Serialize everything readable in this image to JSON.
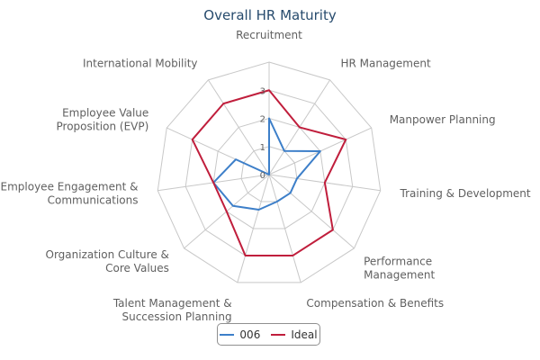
{
  "chart_data": {
    "type": "radar",
    "title": "Overall HR Maturity",
    "categories": [
      "Recruitment",
      "HR Management",
      "Manpower Planning",
      "Training & Development",
      "Performance Management",
      "Compensation & Benefits",
      "Talent Management & Succession Planning",
      "Organization Culture & Core Values",
      "Employee Engagement & Communications",
      "Employee Value Proposition (EVP)",
      "International Mobility"
    ],
    "category_lines": [
      [
        "Recruitment"
      ],
      [
        "HR Management"
      ],
      [
        "Manpower Planning"
      ],
      [
        "Training & Development"
      ],
      [
        "Performance",
        "Management"
      ],
      [
        "Compensation & Benefits"
      ],
      [
        "Talent Management &",
        "Succession Planning"
      ],
      [
        "Organization Culture &",
        "Core Values"
      ],
      [
        "Employee Engagement &",
        "Communications"
      ],
      [
        "Employee Value",
        "Proposition (EVP)"
      ],
      [
        "International Mobility"
      ]
    ],
    "radial_ticks": [
      0,
      1,
      2,
      3
    ],
    "rmax": 4,
    "grid": true,
    "legend_position": "bottom-center",
    "series": [
      {
        "name": "006",
        "color": "#3d7fc9",
        "values": [
          2,
          1,
          2,
          1,
          1,
          1,
          1.3,
          1.7,
          2,
          1.3,
          0
        ]
      },
      {
        "name": "Ideal",
        "color": "#c01e3c",
        "values": [
          3,
          2,
          3,
          2,
          3,
          3,
          3,
          2,
          2,
          3,
          3
        ]
      }
    ]
  }
}
